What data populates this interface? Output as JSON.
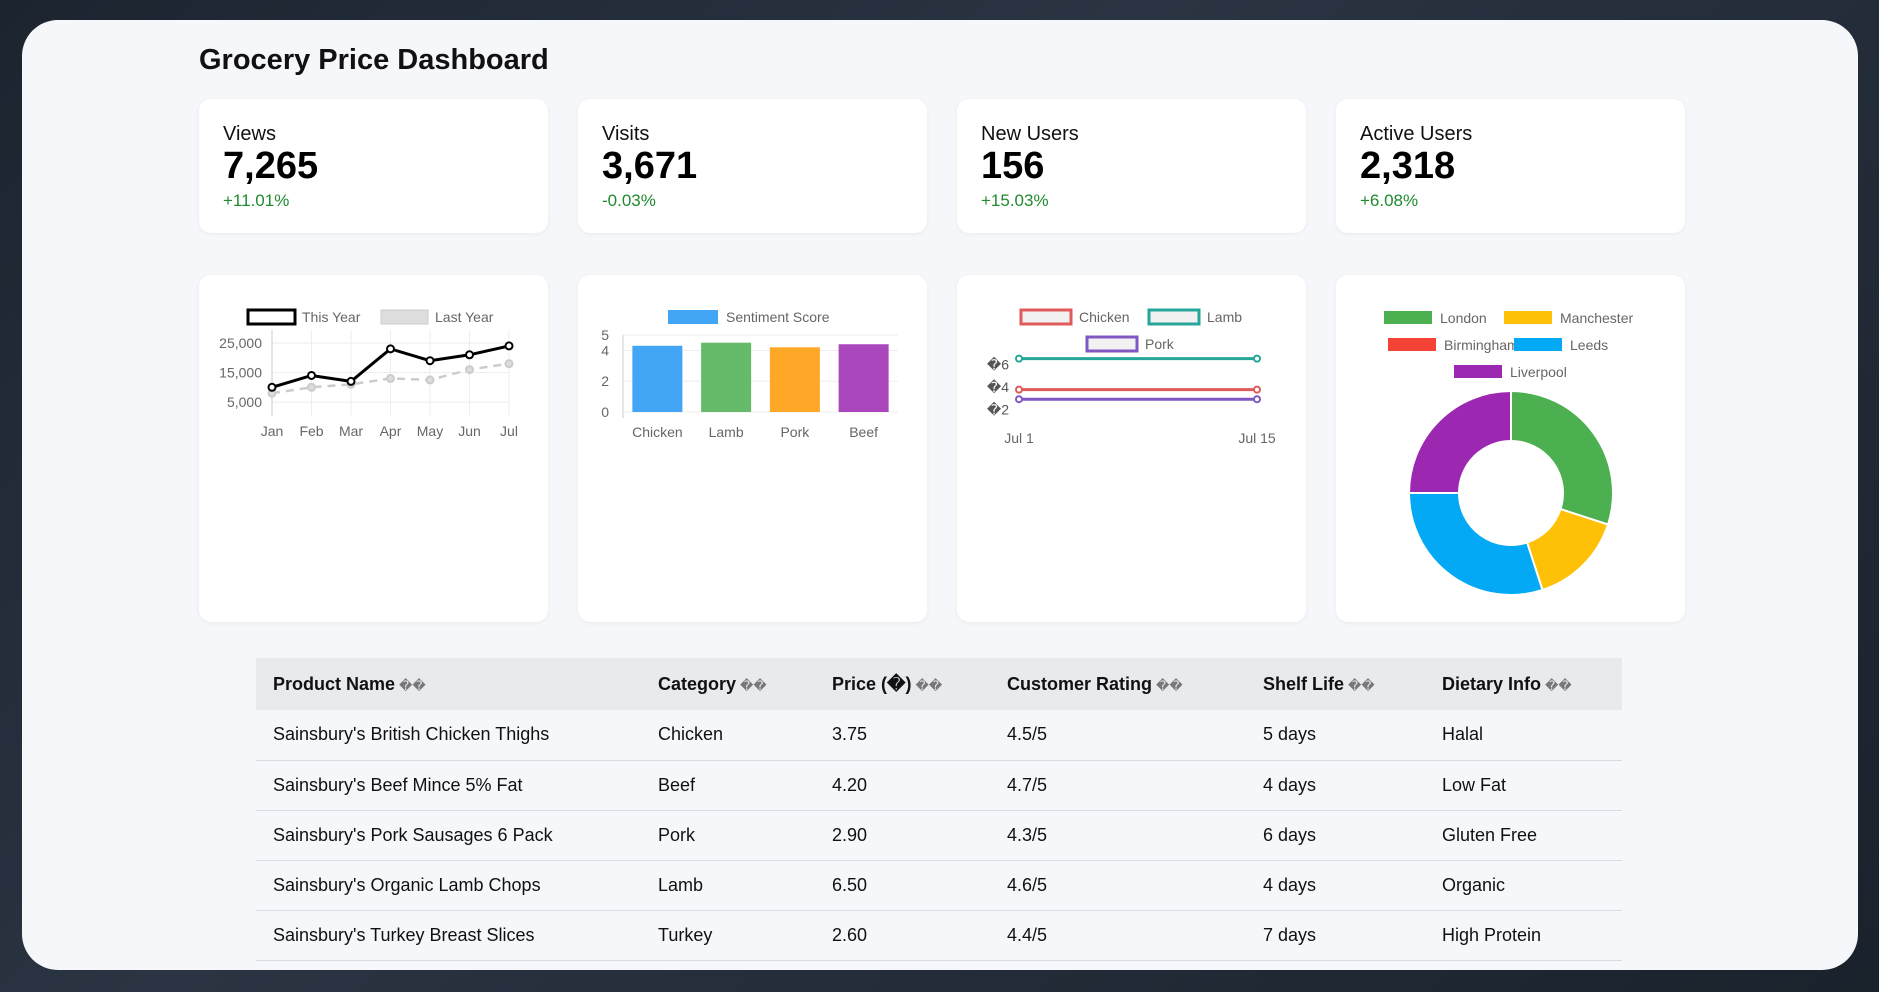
{
  "page": {
    "title": "Grocery Price Dashboard"
  },
  "stats": [
    {
      "label": "Views",
      "value": "7,265",
      "change": "+11.01%"
    },
    {
      "label": "Visits",
      "value": "3,671",
      "change": "-0.03%"
    },
    {
      "label": "New Users",
      "value": "156",
      "change": "+15.03%"
    },
    {
      "label": "Active Users",
      "value": "2,318",
      "change": "+6.08%"
    }
  ],
  "chart_data": [
    {
      "type": "line",
      "categories": [
        "Jan",
        "Feb",
        "Mar",
        "Apr",
        "May",
        "Jun",
        "Jul"
      ],
      "series": [
        {
          "name": "This Year",
          "values": [
            10000,
            14000,
            12000,
            23000,
            19000,
            21000,
            24000
          ],
          "color": "#000000",
          "style": "solid"
        },
        {
          "name": "Last Year",
          "values": [
            8000,
            10000,
            11000,
            13000,
            12500,
            16000,
            18000
          ],
          "color": "#cccccc",
          "style": "dashed"
        }
      ],
      "yticks": [
        "5,000",
        "15,000",
        "25,000"
      ],
      "ylim": [
        3000,
        26000
      ],
      "legend": "top"
    },
    {
      "type": "bar",
      "categories": [
        "Chicken",
        "Lamb",
        "Pork",
        "Beef"
      ],
      "series": [
        {
          "name": "Sentiment Score",
          "values": [
            4.3,
            4.5,
            4.2,
            4.4
          ]
        }
      ],
      "colors": [
        "#42a5f5",
        "#66bb6a",
        "#ffa726",
        "#ab47bc"
      ],
      "yticks": [
        "0",
        "2",
        "4",
        "5"
      ],
      "ylim": [
        0,
        5
      ],
      "legend": "top"
    },
    {
      "type": "line",
      "categories": [
        "Jul 1",
        "Jul 15"
      ],
      "series": [
        {
          "name": "Chicken",
          "values": [
            3.75,
            3.75
          ],
          "color": "#e05a5a"
        },
        {
          "name": "Lamb",
          "values": [
            6.5,
            6.5
          ],
          "color": "#26a69a"
        },
        {
          "name": "Pork",
          "values": [
            2.9,
            2.9
          ],
          "color": "#7e57c2"
        }
      ],
      "yticks": [
        "�2",
        "�4",
        "�6"
      ],
      "ylim": [
        1.5,
        7
      ],
      "legend": "top"
    },
    {
      "type": "pie",
      "labels": [
        "London",
        "Manchester",
        "Birmingham",
        "Leeds",
        "Liverpool"
      ],
      "values": [
        30,
        15,
        0,
        30,
        25
      ],
      "colors": [
        "#4caf50",
        "#ffc107",
        "#f44336",
        "#03a9f4",
        "#9c27b0"
      ],
      "legend": "top"
    }
  ],
  "table": {
    "headers": [
      "Product Name",
      "Category",
      "Price (�)",
      "Customer Rating",
      "Shelf Life",
      "Dietary Info"
    ],
    "sort_glyph": "��",
    "rows": [
      [
        "Sainsbury's British Chicken Thighs",
        "Chicken",
        "3.75",
        "4.5/5",
        "5 days",
        "Halal"
      ],
      [
        "Sainsbury's Beef Mince 5% Fat",
        "Beef",
        "4.20",
        "4.7/5",
        "4 days",
        "Low Fat"
      ],
      [
        "Sainsbury's Pork Sausages 6 Pack",
        "Pork",
        "2.90",
        "4.3/5",
        "6 days",
        "Gluten Free"
      ],
      [
        "Sainsbury's Organic Lamb Chops",
        "Lamb",
        "6.50",
        "4.6/5",
        "4 days",
        "Organic"
      ],
      [
        "Sainsbury's Turkey Breast Slices",
        "Turkey",
        "2.60",
        "4.4/5",
        "7 days",
        "High Protein"
      ]
    ]
  }
}
